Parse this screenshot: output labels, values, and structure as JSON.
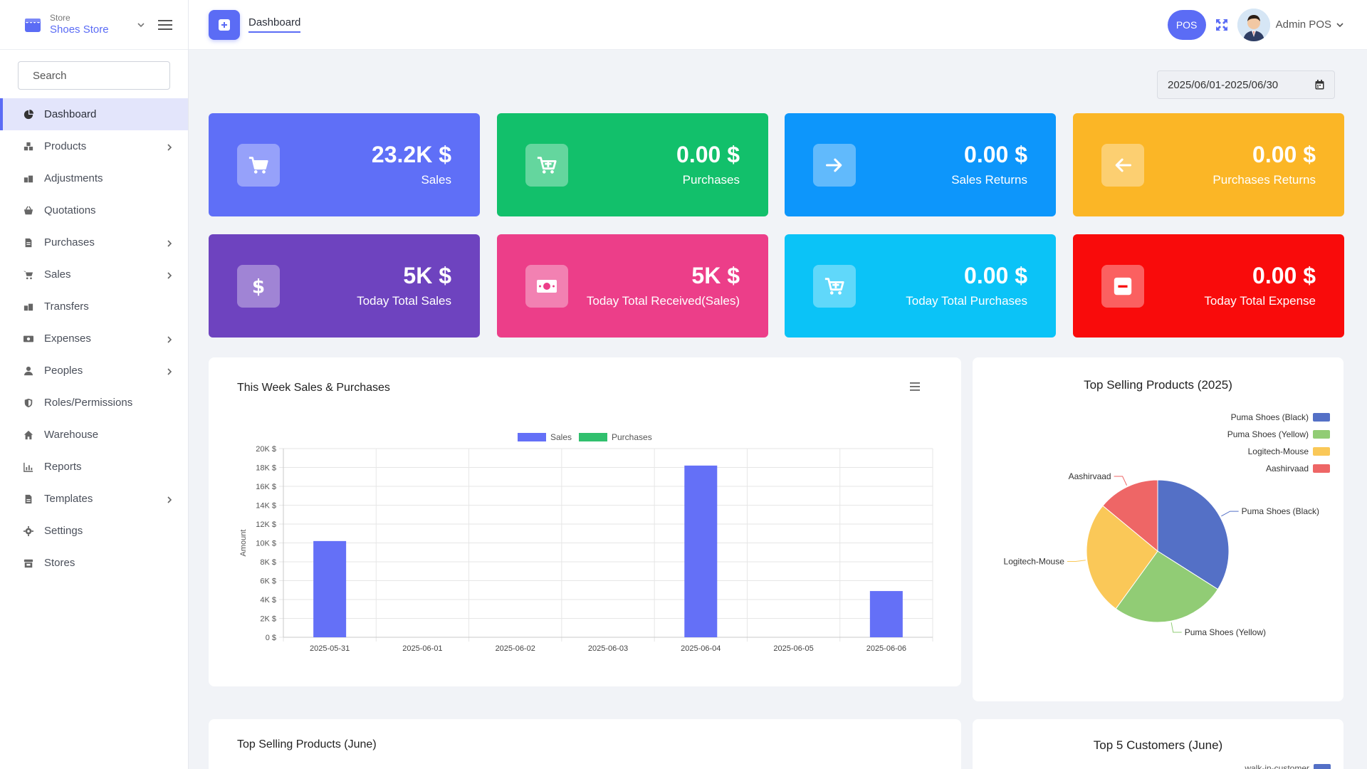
{
  "sidebar": {
    "brand_sub": "Store",
    "brand_name": "Shoes Store",
    "search_placeholder": "Search",
    "items": [
      {
        "label": "Dashboard",
        "icon": "chart-pie-icon",
        "active": true,
        "has_children": false
      },
      {
        "label": "Products",
        "icon": "boxes-icon",
        "active": false,
        "has_children": true
      },
      {
        "label": "Adjustments",
        "icon": "dolly-icon",
        "active": false,
        "has_children": false
      },
      {
        "label": "Quotations",
        "icon": "basket-icon",
        "active": false,
        "has_children": false
      },
      {
        "label": "Purchases",
        "icon": "file-invoice-icon",
        "active": false,
        "has_children": true
      },
      {
        "label": "Sales",
        "icon": "cart-icon",
        "active": false,
        "has_children": true
      },
      {
        "label": "Transfers",
        "icon": "transfer-icon",
        "active": false,
        "has_children": false
      },
      {
        "label": "Expenses",
        "icon": "money-icon",
        "active": false,
        "has_children": true
      },
      {
        "label": "Peoples",
        "icon": "user-icon",
        "active": false,
        "has_children": true
      },
      {
        "label": "Roles/Permissions",
        "icon": "shield-icon",
        "active": false,
        "has_children": false
      },
      {
        "label": "Warehouse",
        "icon": "home-icon",
        "active": false,
        "has_children": false
      },
      {
        "label": "Reports",
        "icon": "bar-chart-icon",
        "active": false,
        "has_children": false
      },
      {
        "label": "Templates",
        "icon": "file-icon",
        "active": false,
        "has_children": true
      },
      {
        "label": "Settings",
        "icon": "gear-icon",
        "active": false,
        "has_children": false
      },
      {
        "label": "Stores",
        "icon": "store-icon",
        "active": false,
        "has_children": false
      }
    ]
  },
  "topbar": {
    "tab_label": "Dashboard",
    "pos_label": "POS",
    "user_name": "Admin POS"
  },
  "filters": {
    "date_range": "2025/06/01-2025/06/30"
  },
  "cards": [
    {
      "value": "23.2K $",
      "label": "Sales",
      "color": "#5f6ff7",
      "icon": "cart-icon"
    },
    {
      "value": "0.00 $",
      "label": "Purchases",
      "color": "#12c06b",
      "icon": "cart-plus-icon"
    },
    {
      "value": "0.00 $",
      "label": "Sales Returns",
      "color": "#0d96fb",
      "icon": "arrow-right-icon"
    },
    {
      "value": "0.00 $",
      "label": "Purchases Returns",
      "color": "#fbb626",
      "icon": "arrow-left-icon"
    },
    {
      "value": "5K $",
      "label": "Today Total Sales",
      "color": "#6e43bf",
      "icon": "dollar-icon"
    },
    {
      "value": "5K $",
      "label": "Today Total Received(Sales)",
      "color": "#ec3e89",
      "icon": "money-bill-icon"
    },
    {
      "value": "0.00 $",
      "label": "Today Total Purchases",
      "color": "#0bc3f7",
      "icon": "cart-plus-icon"
    },
    {
      "value": "0.00 $",
      "label": "Today Total Expense",
      "color": "#f90b0b",
      "icon": "minus-square-icon"
    }
  ],
  "bottom": {
    "products_title": "Top Selling Products (June)",
    "customers_title": "Top 5 Customers (June)",
    "customer_first": "walk-in-customer"
  },
  "chart_data": [
    {
      "type": "bar",
      "title": "This Week Sales & Purchases",
      "ylabel": "Amount",
      "xlabel": "",
      "categories": [
        "2025-05-31",
        "2025-06-01",
        "2025-06-02",
        "2025-06-03",
        "2025-06-04",
        "2025-06-05",
        "2025-06-06"
      ],
      "series": [
        {
          "name": "Sales",
          "color": "#6470f7",
          "values": [
            10200,
            0,
            0,
            0,
            18200,
            0,
            4900
          ]
        },
        {
          "name": "Purchases",
          "color": "#31c06e",
          "values": [
            0,
            0,
            0,
            0,
            0,
            0,
            0
          ]
        }
      ],
      "ylim": [
        0,
        20000
      ],
      "yticks": [
        "0 $",
        "2K $",
        "4K $",
        "6K $",
        "8K $",
        "10K $",
        "12K $",
        "14K $",
        "16K $",
        "18K $",
        "20K $"
      ],
      "grid": true,
      "legend": "top-center"
    },
    {
      "type": "pie",
      "title": "Top Selling Products (2025)",
      "legend": "top-right",
      "slices": [
        {
          "name": "Puma Shoes (Black)",
          "value": 34,
          "color": "#5470c6"
        },
        {
          "name": "Puma Shoes (Yellow)",
          "value": 26,
          "color": "#91cc75"
        },
        {
          "name": "Logitech-Mouse",
          "value": 26,
          "color": "#fac858"
        },
        {
          "name": "Aashirvaad",
          "value": 14,
          "color": "#ee6666"
        }
      ]
    }
  ]
}
